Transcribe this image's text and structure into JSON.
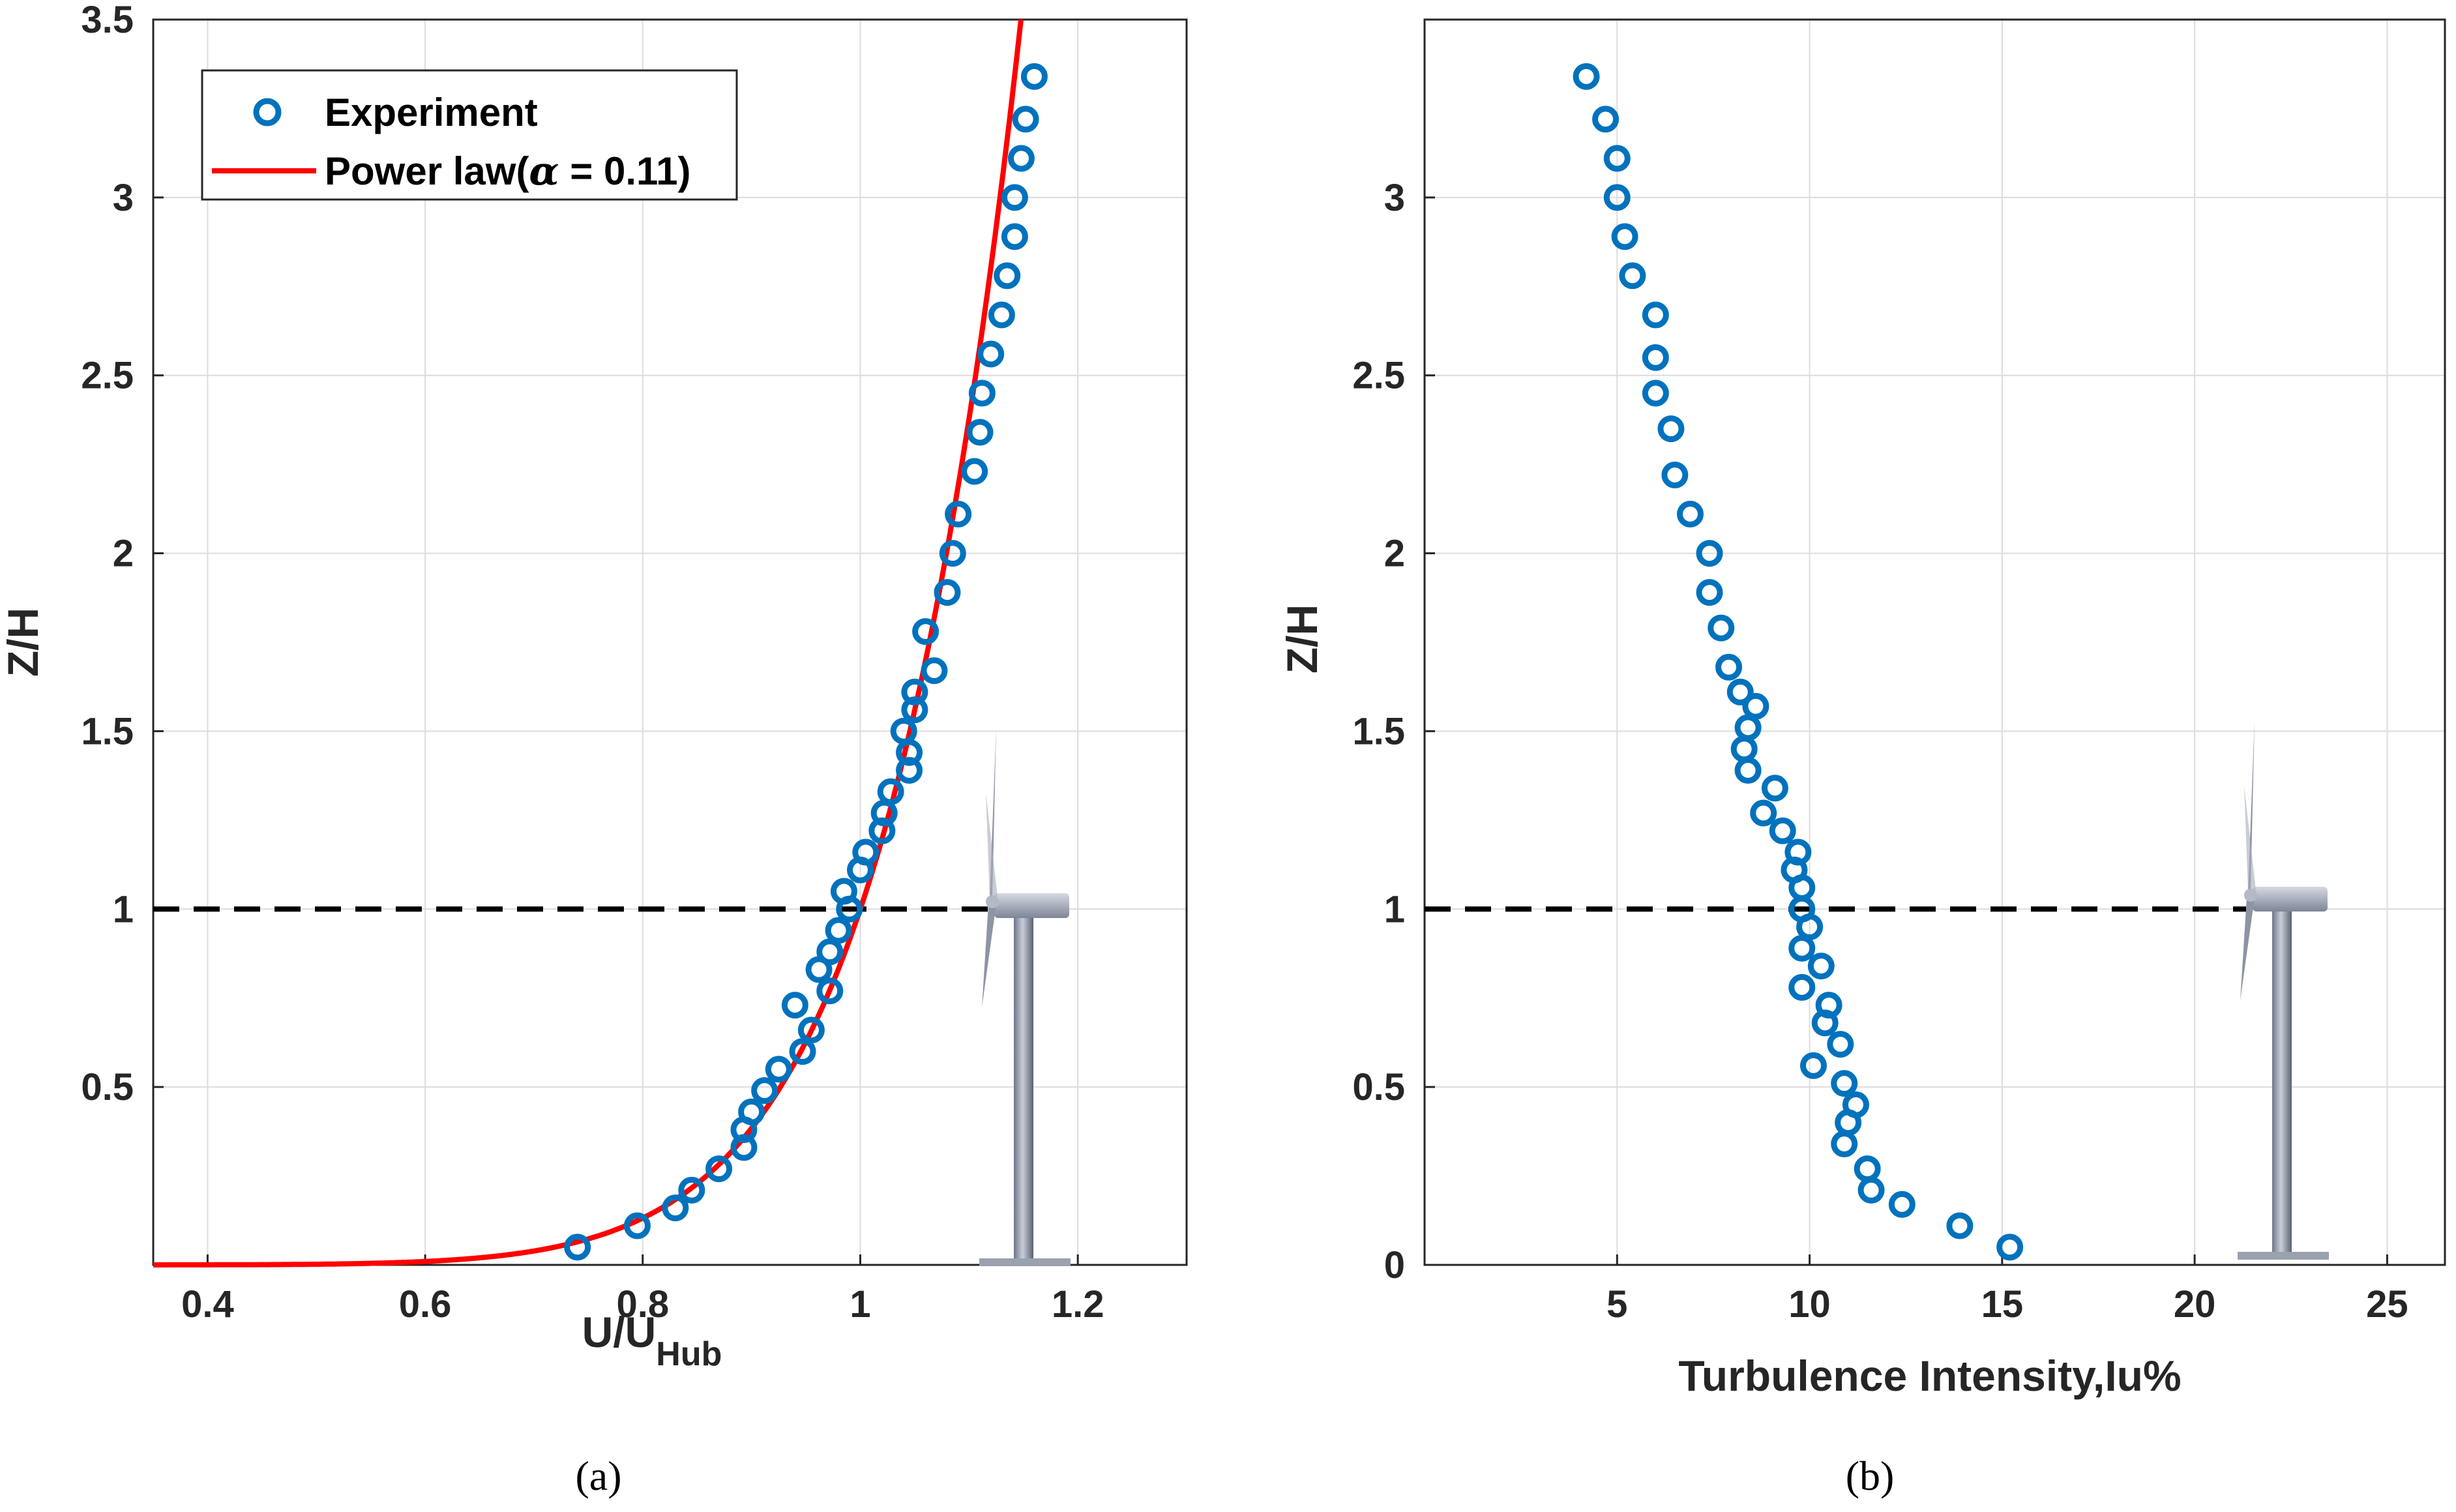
{
  "colors": {
    "experiment": "#0072BD",
    "power_law": "#FF0000",
    "hub_line": "#000000",
    "grid": "#dcdcdc",
    "axis": "#262626"
  },
  "icons": [
    "wind-turbine-icon"
  ],
  "chart_data": [
    {
      "type": "scatter",
      "panel_caption": "(a)",
      "xlabel": "U/U",
      "xlabel_sub": "Hub",
      "ylabel": "Z/H",
      "xlim": [
        0.35,
        1.3
      ],
      "ylim": [
        0,
        3.5
      ],
      "xticks": [
        0.4,
        0.6,
        0.8,
        1,
        1.2
      ],
      "xtick_labels": [
        "0.4",
        "0.6",
        "0.8",
        "1",
        "1.2"
      ],
      "yticks": [
        0.5,
        1,
        1.5,
        2,
        2.5,
        3,
        3.5
      ],
      "ytick_labels": [
        "0.5",
        "1",
        "1.5",
        "2",
        "2.5",
        "3",
        "3.5"
      ],
      "grid": true,
      "legend": {
        "position": "top-left",
        "entries": [
          {
            "label": "Experiment",
            "kind": "marker"
          },
          {
            "label_prefix": "Power law(",
            "label_symbol": "α",
            "label_suffix": " = 0.11)",
            "kind": "line"
          }
        ]
      },
      "hub_height_line": {
        "y": 1.0,
        "style": "dashed"
      },
      "series": [
        {
          "name": "Experiment",
          "marker": "circle",
          "points": [
            [
              0.74,
              0.05
            ],
            [
              0.795,
              0.11
            ],
            [
              0.83,
              0.16
            ],
            [
              0.845,
              0.21
            ],
            [
              0.87,
              0.27
            ],
            [
              0.893,
              0.33
            ],
            [
              0.893,
              0.38
            ],
            [
              0.9,
              0.43
            ],
            [
              0.912,
              0.49
            ],
            [
              0.925,
              0.55
            ],
            [
              0.947,
              0.6
            ],
            [
              0.955,
              0.66
            ],
            [
              0.94,
              0.73
            ],
            [
              0.972,
              0.77
            ],
            [
              0.962,
              0.83
            ],
            [
              0.972,
              0.88
            ],
            [
              0.98,
              0.94
            ],
            [
              0.99,
              1.0
            ],
            [
              0.985,
              1.05
            ],
            [
              1.0,
              1.11
            ],
            [
              1.005,
              1.16
            ],
            [
              1.02,
              1.22
            ],
            [
              1.022,
              1.27
            ],
            [
              1.028,
              1.33
            ],
            [
              1.045,
              1.39
            ],
            [
              1.045,
              1.44
            ],
            [
              1.04,
              1.5
            ],
            [
              1.05,
              1.56
            ],
            [
              1.05,
              1.61
            ],
            [
              1.068,
              1.67
            ],
            [
              1.06,
              1.78
            ],
            [
              1.08,
              1.89
            ],
            [
              1.085,
              2.0
            ],
            [
              1.09,
              2.11
            ],
            [
              1.105,
              2.23
            ],
            [
              1.11,
              2.34
            ],
            [
              1.112,
              2.45
            ],
            [
              1.12,
              2.56
            ],
            [
              1.13,
              2.67
            ],
            [
              1.135,
              2.78
            ],
            [
              1.142,
              2.89
            ],
            [
              1.142,
              3.0
            ],
            [
              1.148,
              3.11
            ],
            [
              1.152,
              3.22
            ],
            [
              1.16,
              3.34
            ]
          ]
        },
        {
          "name": "Power law(α = 0.11)",
          "kind": "power_law",
          "alpha": 0.11
        }
      ]
    },
    {
      "type": "scatter",
      "panel_caption": "(b)",
      "xlabel": "Turbulence Intensity,Iu%",
      "ylabel": "Z/H",
      "xlim": [
        0,
        26.5
      ],
      "ylim": [
        0,
        3.5
      ],
      "xticks": [
        5,
        10,
        15,
        20,
        25
      ],
      "xtick_labels": [
        "5",
        "10",
        "15",
        "20",
        "25"
      ],
      "yticks": [
        0,
        0.5,
        1,
        1.5,
        2,
        2.5,
        3
      ],
      "ytick_labels": [
        "0",
        "0.5",
        "1",
        "1.5",
        "2",
        "2.5",
        "3"
      ],
      "grid": true,
      "hub_height_line": {
        "y": 1.0,
        "style": "dashed"
      },
      "series": [
        {
          "name": "Experiment",
          "marker": "circle",
          "points": [
            [
              15.2,
              0.05
            ],
            [
              13.9,
              0.11
            ],
            [
              12.4,
              0.17
            ],
            [
              11.6,
              0.21
            ],
            [
              11.5,
              0.27
            ],
            [
              10.9,
              0.34
            ],
            [
              11.0,
              0.4
            ],
            [
              11.2,
              0.45
            ],
            [
              10.9,
              0.51
            ],
            [
              10.8,
              0.62
            ],
            [
              10.1,
              0.56
            ],
            [
              10.4,
              0.68
            ],
            [
              10.5,
              0.73
            ],
            [
              9.8,
              0.78
            ],
            [
              10.3,
              0.84
            ],
            [
              9.8,
              0.89
            ],
            [
              10.0,
              0.95
            ],
            [
              9.8,
              1.0
            ],
            [
              9.8,
              1.06
            ],
            [
              9.6,
              1.11
            ],
            [
              9.7,
              1.16
            ],
            [
              9.3,
              1.22
            ],
            [
              8.8,
              1.27
            ],
            [
              9.1,
              1.34
            ],
            [
              8.4,
              1.39
            ],
            [
              8.3,
              1.45
            ],
            [
              8.4,
              1.51
            ],
            [
              8.6,
              1.57
            ],
            [
              8.2,
              1.61
            ],
            [
              7.9,
              1.68
            ],
            [
              7.7,
              1.79
            ],
            [
              7.4,
              1.89
            ],
            [
              7.4,
              2.0
            ],
            [
              6.9,
              2.11
            ],
            [
              6.5,
              2.22
            ],
            [
              6.4,
              2.35
            ],
            [
              6.0,
              2.45
            ],
            [
              6.0,
              2.55
            ],
            [
              6.0,
              2.67
            ],
            [
              5.4,
              2.78
            ],
            [
              5.2,
              2.89
            ],
            [
              5.0,
              3.0
            ],
            [
              5.0,
              3.11
            ],
            [
              4.7,
              3.22
            ],
            [
              4.2,
              3.34
            ]
          ]
        }
      ]
    }
  ]
}
